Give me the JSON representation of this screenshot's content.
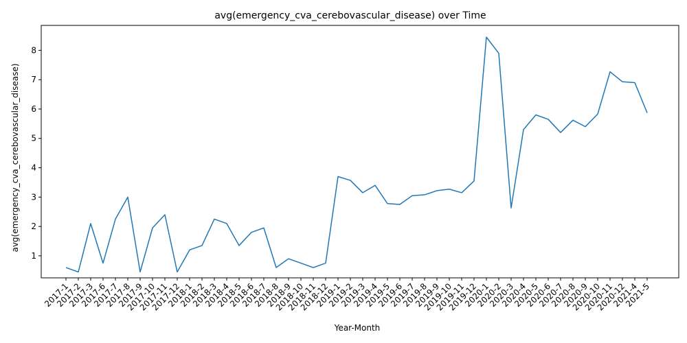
{
  "chart_data": {
    "type": "line",
    "title": "avg(emergency_cva_cerebovascular_disease) over Time",
    "xlabel": "Year-Month",
    "ylabel": "avg(emergency_cva_cerebovascular_disease)",
    "ylim": [
      0.25,
      8.85
    ],
    "yticks": [
      1,
      2,
      3,
      4,
      5,
      6,
      7,
      8
    ],
    "grid": false,
    "line_color": "#1f77b4",
    "categories": [
      "2017-1",
      "2017-2",
      "2017-3",
      "2017-6",
      "2017-7",
      "2017-8",
      "2017-9",
      "2017-10",
      "2017-11",
      "2017-12",
      "2018-1",
      "2018-2",
      "2018-3",
      "2018-4",
      "2018-5",
      "2018-6",
      "2018-7",
      "2018-8",
      "2018-9",
      "2018-10",
      "2018-11",
      "2018-12",
      "2019-1",
      "2019-2",
      "2019-3",
      "2019-4",
      "2019-5",
      "2019-6",
      "2019-7",
      "2019-8",
      "2019-9",
      "2019-10",
      "2019-11",
      "2019-12",
      "2020-1",
      "2020-2",
      "2020-3",
      "2020-4",
      "2020-5",
      "2020-6",
      "2020-7",
      "2020-8",
      "2020-9",
      "2020-10",
      "2020-11",
      "2020-12",
      "2021-4",
      "2021-5"
    ],
    "values": [
      0.6,
      0.45,
      2.1,
      0.75,
      2.25,
      3.0,
      0.45,
      1.95,
      2.4,
      0.45,
      1.2,
      1.35,
      2.25,
      2.1,
      1.35,
      1.8,
      1.95,
      0.6,
      0.9,
      0.75,
      0.6,
      0.75,
      3.7,
      3.57,
      3.15,
      3.4,
      2.78,
      2.75,
      3.05,
      3.08,
      3.22,
      3.27,
      3.15,
      3.55,
      8.45,
      7.9,
      2.63,
      5.3,
      5.8,
      5.65,
      5.2,
      5.62,
      5.4,
      5.83,
      7.27,
      6.93,
      6.9,
      5.87
    ]
  }
}
